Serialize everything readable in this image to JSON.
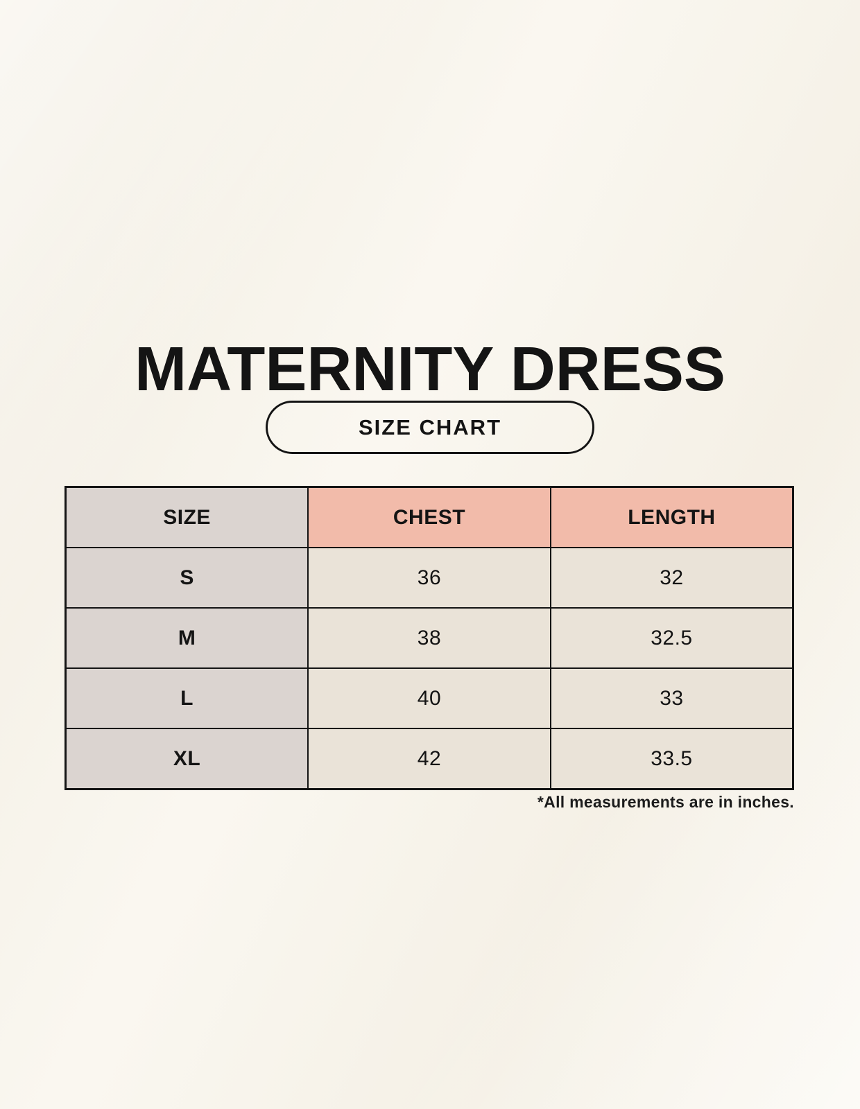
{
  "page": {
    "title": "MATERNITY DRESS",
    "button_label": "SIZE CHART",
    "footnote": "*All measurements are in inches."
  },
  "table": {
    "headers": [
      "SIZE",
      "CHEST",
      "LENGTH"
    ],
    "rows": [
      [
        "S",
        "36",
        "32"
      ],
      [
        "M",
        "38",
        "32.5"
      ],
      [
        "L",
        "40",
        "33"
      ],
      [
        "XL",
        "42",
        "33.5"
      ]
    ],
    "units": "inches"
  },
  "colors": {
    "background": "#f8f4ea",
    "accent_salmon": "#f2bbaa",
    "header_gray": "#dbd4d0",
    "cell_cream": "#eae3d8",
    "border": "#141414",
    "text": "#141414"
  }
}
